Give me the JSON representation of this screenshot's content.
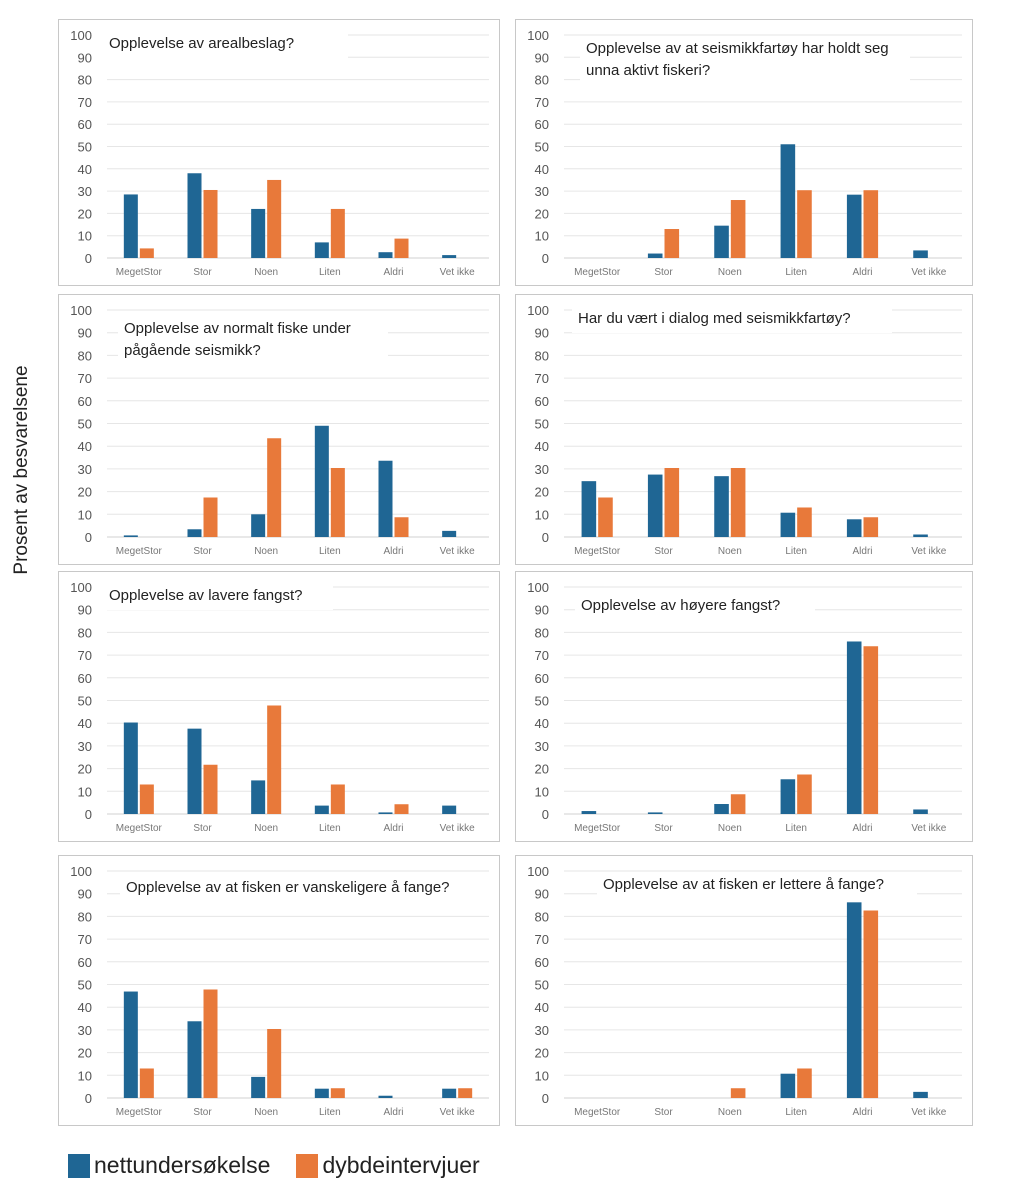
{
  "ylabel": "Prosent av besvarelsene",
  "legend": [
    {
      "label": "nettundersøkelse",
      "color": "#1f6694"
    },
    {
      "label": "dybdeintervjuer",
      "color": "#e8793a"
    }
  ],
  "chart_data": [
    {
      "type": "bar",
      "title": "Opplevelse av arealbeslag?",
      "categories": [
        "MegetStor",
        "Stor",
        "Noen",
        "Liten",
        "Aldri",
        "Vet ikke"
      ],
      "series": [
        {
          "name": "nettundersøkelse",
          "values": [
            28.5,
            38,
            22,
            7,
            2.6,
            1.3
          ]
        },
        {
          "name": "dybdeintervjuer",
          "values": [
            4.3,
            30.5,
            35,
            22,
            8.7,
            0
          ]
        }
      ],
      "xlabel": "",
      "ylabel": "Prosent av besvarelsene",
      "ylim": [
        0,
        100
      ],
      "yticks": [
        0,
        10,
        20,
        30,
        40,
        50,
        60,
        70,
        80,
        90,
        100
      ],
      "grid": true
    },
    {
      "type": "bar",
      "title": "Opplevelse av at seismikkfartøy har holdt seg unna aktivt fiskeri?",
      "categories": [
        "MegetStor",
        "Stor",
        "Noen",
        "Liten",
        "Aldri",
        "Vet ikke"
      ],
      "series": [
        {
          "name": "nettundersøkelse",
          "values": [
            0,
            2,
            14.5,
            51,
            28.4,
            3.4
          ]
        },
        {
          "name": "dybdeintervjuer",
          "values": [
            0,
            13,
            26,
            30.4,
            30.4,
            0
          ]
        }
      ],
      "xlabel": "",
      "ylabel": "Prosent av besvarelsene",
      "ylim": [
        0,
        100
      ],
      "yticks": [
        0,
        10,
        20,
        30,
        40,
        50,
        60,
        70,
        80,
        90,
        100
      ],
      "grid": true
    },
    {
      "type": "bar",
      "title": "Opplevelse av normalt fiske under pågående seismikk?",
      "categories": [
        "MegetStor",
        "Stor",
        "Noen",
        "Liten",
        "Aldri",
        "Vet ikke"
      ],
      "series": [
        {
          "name": "nettundersøkelse",
          "values": [
            0.7,
            3.4,
            10,
            49,
            33.6,
            2.7
          ]
        },
        {
          "name": "dybdeintervjuer",
          "values": [
            0,
            17.4,
            43.5,
            30.4,
            8.7,
            0
          ]
        }
      ],
      "xlabel": "",
      "ylabel": "Prosent av besvarelsene",
      "ylim": [
        0,
        100
      ],
      "yticks": [
        0,
        10,
        20,
        30,
        40,
        50,
        60,
        70,
        80,
        90,
        100
      ],
      "grid": true
    },
    {
      "type": "bar",
      "title": "Har du vært i dialog med seismikkfartøy?",
      "categories": [
        "MegetStor",
        "Stor",
        "Noen",
        "Liten",
        "Aldri",
        "Vet ikke"
      ],
      "series": [
        {
          "name": "nettundersøkelse",
          "values": [
            24.6,
            27.5,
            26.8,
            10.7,
            7.8,
            1.1
          ]
        },
        {
          "name": "dybdeintervjuer",
          "values": [
            17.4,
            30.4,
            30.4,
            13,
            8.7,
            0
          ]
        }
      ],
      "xlabel": "",
      "ylabel": "Prosent av besvarelsene",
      "ylim": [
        0,
        100
      ],
      "yticks": [
        0,
        10,
        20,
        30,
        40,
        50,
        60,
        70,
        80,
        90,
        100
      ],
      "grid": true
    },
    {
      "type": "bar",
      "title": "Opplevelse av lavere fangst?",
      "categories": [
        "MegetStor",
        "Stor",
        "Noen",
        "Liten",
        "Aldri",
        "Vet ikke"
      ],
      "series": [
        {
          "name": "nettundersøkelse",
          "values": [
            40.3,
            37.6,
            14.8,
            3.7,
            0.7,
            3.7
          ]
        },
        {
          "name": "dybdeintervjuer",
          "values": [
            13,
            21.7,
            47.8,
            13,
            4.3,
            0
          ]
        }
      ],
      "xlabel": "",
      "ylabel": "Prosent av besvarelsene",
      "ylim": [
        0,
        100
      ],
      "yticks": [
        0,
        10,
        20,
        30,
        40,
        50,
        60,
        70,
        80,
        90,
        100
      ],
      "grid": true
    },
    {
      "type": "bar",
      "title": "Opplevelse av høyere fangst?",
      "categories": [
        "MegetStor",
        "Stor",
        "Noen",
        "Liten",
        "Aldri",
        "Vet ikke"
      ],
      "series": [
        {
          "name": "nettundersøkelse",
          "values": [
            1.3,
            0.7,
            4.4,
            15.3,
            76,
            2
          ]
        },
        {
          "name": "dybdeintervjuer",
          "values": [
            0,
            0,
            8.7,
            17.4,
            73.9,
            0
          ]
        }
      ],
      "xlabel": "",
      "ylabel": "Prosent av besvarelsene",
      "ylim": [
        0,
        100
      ],
      "yticks": [
        0,
        10,
        20,
        30,
        40,
        50,
        60,
        70,
        80,
        90,
        100
      ],
      "grid": true
    },
    {
      "type": "bar",
      "title": "Opplevelse av at fisken er vanskeligere å fange?",
      "categories": [
        "MegetStor",
        "Stor",
        "Noen",
        "Liten",
        "Aldri",
        "Vet ikke"
      ],
      "series": [
        {
          "name": "nettundersøkelse",
          "values": [
            46.9,
            33.8,
            9.3,
            4.1,
            1,
            4.1
          ]
        },
        {
          "name": "dybdeintervjuer",
          "values": [
            13,
            47.8,
            30.4,
            4.3,
            0,
            4.3
          ]
        }
      ],
      "xlabel": "",
      "ylabel": "Prosent av besvarelsene",
      "ylim": [
        0,
        100
      ],
      "yticks": [
        0,
        10,
        20,
        30,
        40,
        50,
        60,
        70,
        80,
        90,
        100
      ],
      "grid": true
    },
    {
      "type": "bar",
      "title": "Opplevelse av at fisken er lettere å fange?",
      "categories": [
        "MegetStor",
        "Stor",
        "Noen",
        "Liten",
        "Aldri",
        "Vet ikke"
      ],
      "series": [
        {
          "name": "nettundersøkelse",
          "values": [
            0,
            0,
            0,
            10.7,
            86.2,
            2.7
          ]
        },
        {
          "name": "dybdeintervjuer",
          "values": [
            0,
            0,
            4.3,
            13,
            82.6,
            0
          ]
        }
      ],
      "xlabel": "",
      "ylabel": "Prosent av besvarelsene",
      "ylim": [
        0,
        100
      ],
      "yticks": [
        0,
        10,
        20,
        30,
        40,
        50,
        60,
        70,
        80,
        90,
        100
      ],
      "grid": true
    }
  ]
}
